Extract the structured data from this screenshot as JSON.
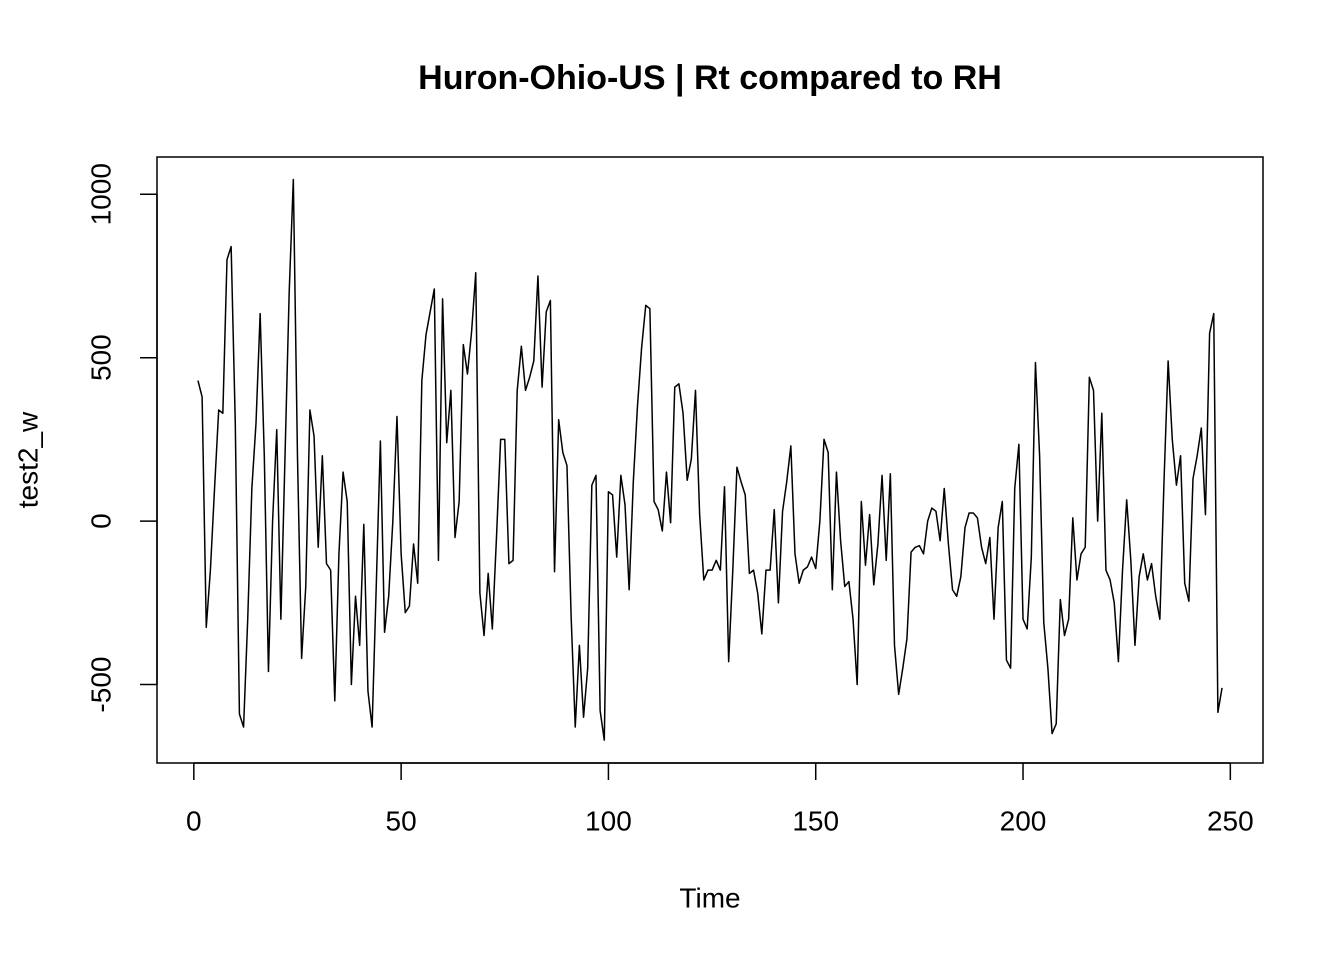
{
  "chart_data": {
    "type": "line",
    "title": "Huron-Ohio-US | Rt compared to RH",
    "x_label": "Time",
    "y_label": "test2_w",
    "x": [
      1,
      2,
      3,
      4,
      5,
      6,
      7,
      8,
      9,
      10,
      11,
      12,
      13,
      14,
      15,
      16,
      17,
      18,
      19,
      20,
      21,
      22,
      23,
      24,
      25,
      26,
      27,
      28,
      29,
      30,
      31,
      32,
      33,
      34,
      35,
      36,
      37,
      38,
      39,
      40,
      41,
      42,
      43,
      44,
      45,
      46,
      47,
      48,
      49,
      50,
      51,
      52,
      53,
      54,
      55,
      56,
      57,
      58,
      59,
      60,
      61,
      62,
      63,
      64,
      65,
      66,
      67,
      68,
      69,
      70,
      71,
      72,
      73,
      74,
      75,
      76,
      77,
      78,
      79,
      80,
      81,
      82,
      83,
      84,
      85,
      86,
      87,
      88,
      89,
      90,
      91,
      92,
      93,
      94,
      95,
      96,
      97,
      98,
      99,
      100,
      101,
      102,
      103,
      104,
      105,
      106,
      107,
      108,
      109,
      110,
      111,
      112,
      113,
      114,
      115,
      116,
      117,
      118,
      119,
      120,
      121,
      122,
      123,
      124,
      125,
      126,
      127,
      128,
      129,
      130,
      131,
      132,
      133,
      134,
      135,
      136,
      137,
      138,
      139,
      140,
      141,
      142,
      143,
      144,
      145,
      146,
      147,
      148,
      149,
      150,
      151,
      152,
      153,
      154,
      155,
      156,
      157,
      158,
      159,
      160,
      161,
      162,
      163,
      164,
      165,
      166,
      167,
      168,
      169,
      170,
      171,
      172,
      173,
      174,
      175,
      176,
      177,
      178,
      179,
      180,
      181,
      182,
      183,
      184,
      185,
      186,
      187,
      188,
      189,
      190,
      191,
      192,
      193,
      194,
      195,
      196,
      197,
      198,
      199,
      200,
      201,
      202,
      203,
      204,
      205,
      206,
      207,
      208,
      209,
      210,
      211,
      212,
      213,
      214,
      215,
      216,
      217,
      218,
      219,
      220,
      221,
      222,
      223,
      224,
      225,
      226,
      227,
      228,
      229,
      230,
      231,
      232,
      233,
      234,
      235,
      236,
      237,
      238,
      239,
      240,
      241,
      242,
      243,
      244,
      245,
      246,
      247,
      248
    ],
    "series": [
      {
        "color": "#000000",
        "values": [
          430,
          380,
          -325,
          -150,
          100,
          340,
          330,
          800,
          840,
          300,
          -590,
          -630,
          -300,
          100,
          300,
          635,
          200,
          -460,
          0,
          280,
          -300,
          200,
          700,
          1045,
          200,
          -420,
          -200,
          340,
          260,
          -80,
          200,
          -130,
          -150,
          -550,
          -100,
          150,
          60,
          -500,
          -230,
          -380,
          -10,
          -520,
          -630,
          -200,
          245,
          -340,
          -230,
          0,
          320,
          -100,
          -280,
          -260,
          -70,
          -190,
          430,
          570,
          640,
          710,
          -120,
          680,
          240,
          400,
          -50,
          60,
          540,
          450,
          580,
          760,
          -220,
          -350,
          -160,
          -330,
          -50,
          250,
          250,
          -130,
          -120,
          400,
          535,
          400,
          440,
          490,
          750,
          410,
          640,
          675,
          -155,
          310,
          210,
          170,
          -290,
          -630,
          -380,
          -600,
          -450,
          110,
          140,
          -580,
          -670,
          90,
          80,
          -110,
          140,
          50,
          -210,
          120,
          350,
          530,
          660,
          650,
          60,
          35,
          -30,
          150,
          -5,
          410,
          420,
          330,
          125,
          190,
          400,
          20,
          -180,
          -150,
          -150,
          -120,
          -150,
          105,
          -430,
          -150,
          165,
          120,
          80,
          -160,
          -150,
          -220,
          -345,
          -150,
          -150,
          35,
          -250,
          30,
          120,
          230,
          -100,
          -190,
          -150,
          -140,
          -110,
          -145,
          0,
          250,
          210,
          -210,
          150,
          -60,
          -200,
          -185,
          -300,
          -500,
          60,
          -135,
          20,
          -195,
          -70,
          140,
          -120,
          145,
          -380,
          -530,
          -450,
          -360,
          -95,
          -80,
          -75,
          -100,
          0,
          40,
          30,
          -60,
          100,
          -70,
          -210,
          -230,
          -170,
          -20,
          25,
          25,
          10,
          -80,
          -130,
          -50,
          -300,
          -20,
          60,
          -425,
          -450,
          100,
          235,
          -300,
          -330,
          -110,
          485,
          200,
          -310,
          -450,
          -650,
          -620,
          -240,
          -350,
          -300,
          10,
          -180,
          -100,
          -80,
          440,
          400,
          0,
          330,
          -150,
          -180,
          -250,
          -430,
          -150,
          65,
          -120,
          -380,
          -170,
          -100,
          -180,
          -130,
          -230,
          -300,
          120,
          490,
          250,
          110,
          200,
          -190,
          -245,
          130,
          200,
          285,
          20,
          575,
          635,
          -585,
          -510
        ]
      }
    ],
    "xlim": [
      -8.88,
      257.88
    ],
    "xticks": [
      0,
      50,
      100,
      150,
      200,
      250
    ],
    "ylim": [
      -740,
      1114
    ],
    "yticks": [
      -500,
      0,
      500,
      1000
    ]
  }
}
